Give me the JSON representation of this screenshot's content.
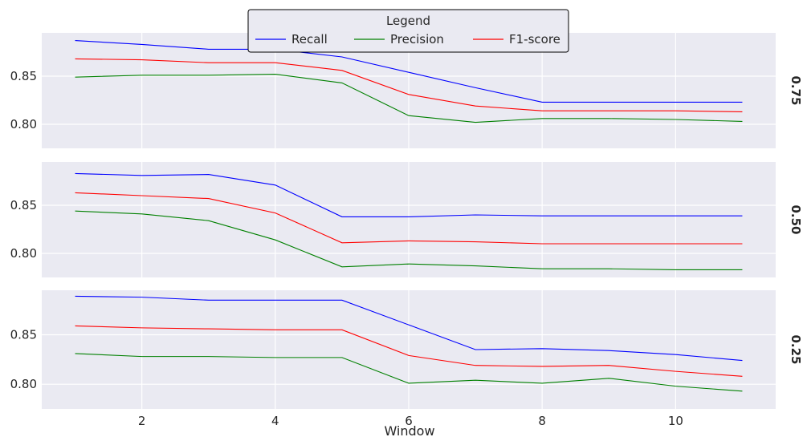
{
  "chart_data": {
    "type": "line",
    "xlabel": "Window",
    "x": [
      1,
      2,
      3,
      4,
      5,
      6,
      7,
      8,
      9,
      10,
      11
    ],
    "xticks": [
      "2",
      "4",
      "6",
      "8",
      "10"
    ],
    "yticks": [
      "0.80",
      "0.85"
    ],
    "xlim": [
      0.5,
      11.5
    ],
    "ylim": [
      0.775,
      0.895
    ],
    "grid": true,
    "legend": {
      "title": "Legend",
      "placement": "top-center",
      "entries": [
        "Recall",
        "Precision",
        "F1-score"
      ]
    },
    "colors": {
      "Recall": "#0000ff",
      "Precision": "#008000",
      "F1-score": "#ff0000"
    },
    "panels": [
      {
        "label": "0.75",
        "series": [
          {
            "name": "Recall",
            "values": [
              0.887,
              0.883,
              0.878,
              0.878,
              0.87,
              0.854,
              0.838,
              0.823,
              0.823,
              0.823,
              0.823
            ]
          },
          {
            "name": "Precision",
            "values": [
              0.849,
              0.851,
              0.851,
              0.852,
              0.843,
              0.809,
              0.802,
              0.806,
              0.806,
              0.805,
              0.803
            ]
          },
          {
            "name": "F1-score",
            "values": [
              0.868,
              0.867,
              0.864,
              0.864,
              0.856,
              0.831,
              0.819,
              0.814,
              0.814,
              0.814,
              0.813
            ]
          }
        ]
      },
      {
        "label": "0.50",
        "series": [
          {
            "name": "Recall",
            "values": [
              0.883,
              0.881,
              0.882,
              0.871,
              0.838,
              0.838,
              0.84,
              0.839,
              0.839,
              0.839,
              0.839
            ]
          },
          {
            "name": "Precision",
            "values": [
              0.844,
              0.841,
              0.834,
              0.814,
              0.786,
              0.789,
              0.787,
              0.784,
              0.784,
              0.783,
              0.783
            ]
          },
          {
            "name": "F1-score",
            "values": [
              0.863,
              0.86,
              0.857,
              0.842,
              0.811,
              0.813,
              0.812,
              0.81,
              0.81,
              0.81,
              0.81
            ]
          }
        ]
      },
      {
        "label": "0.25",
        "series": [
          {
            "name": "Recall",
            "values": [
              0.889,
              0.888,
              0.885,
              0.885,
              0.885,
              0.86,
              0.835,
              0.836,
              0.834,
              0.83,
              0.824
            ]
          },
          {
            "name": "Precision",
            "values": [
              0.831,
              0.828,
              0.828,
              0.827,
              0.827,
              0.801,
              0.804,
              0.801,
              0.806,
              0.798,
              0.793
            ]
          },
          {
            "name": "F1-score",
            "values": [
              0.859,
              0.857,
              0.856,
              0.855,
              0.855,
              0.829,
              0.819,
              0.818,
              0.819,
              0.813,
              0.808
            ]
          }
        ]
      }
    ]
  }
}
